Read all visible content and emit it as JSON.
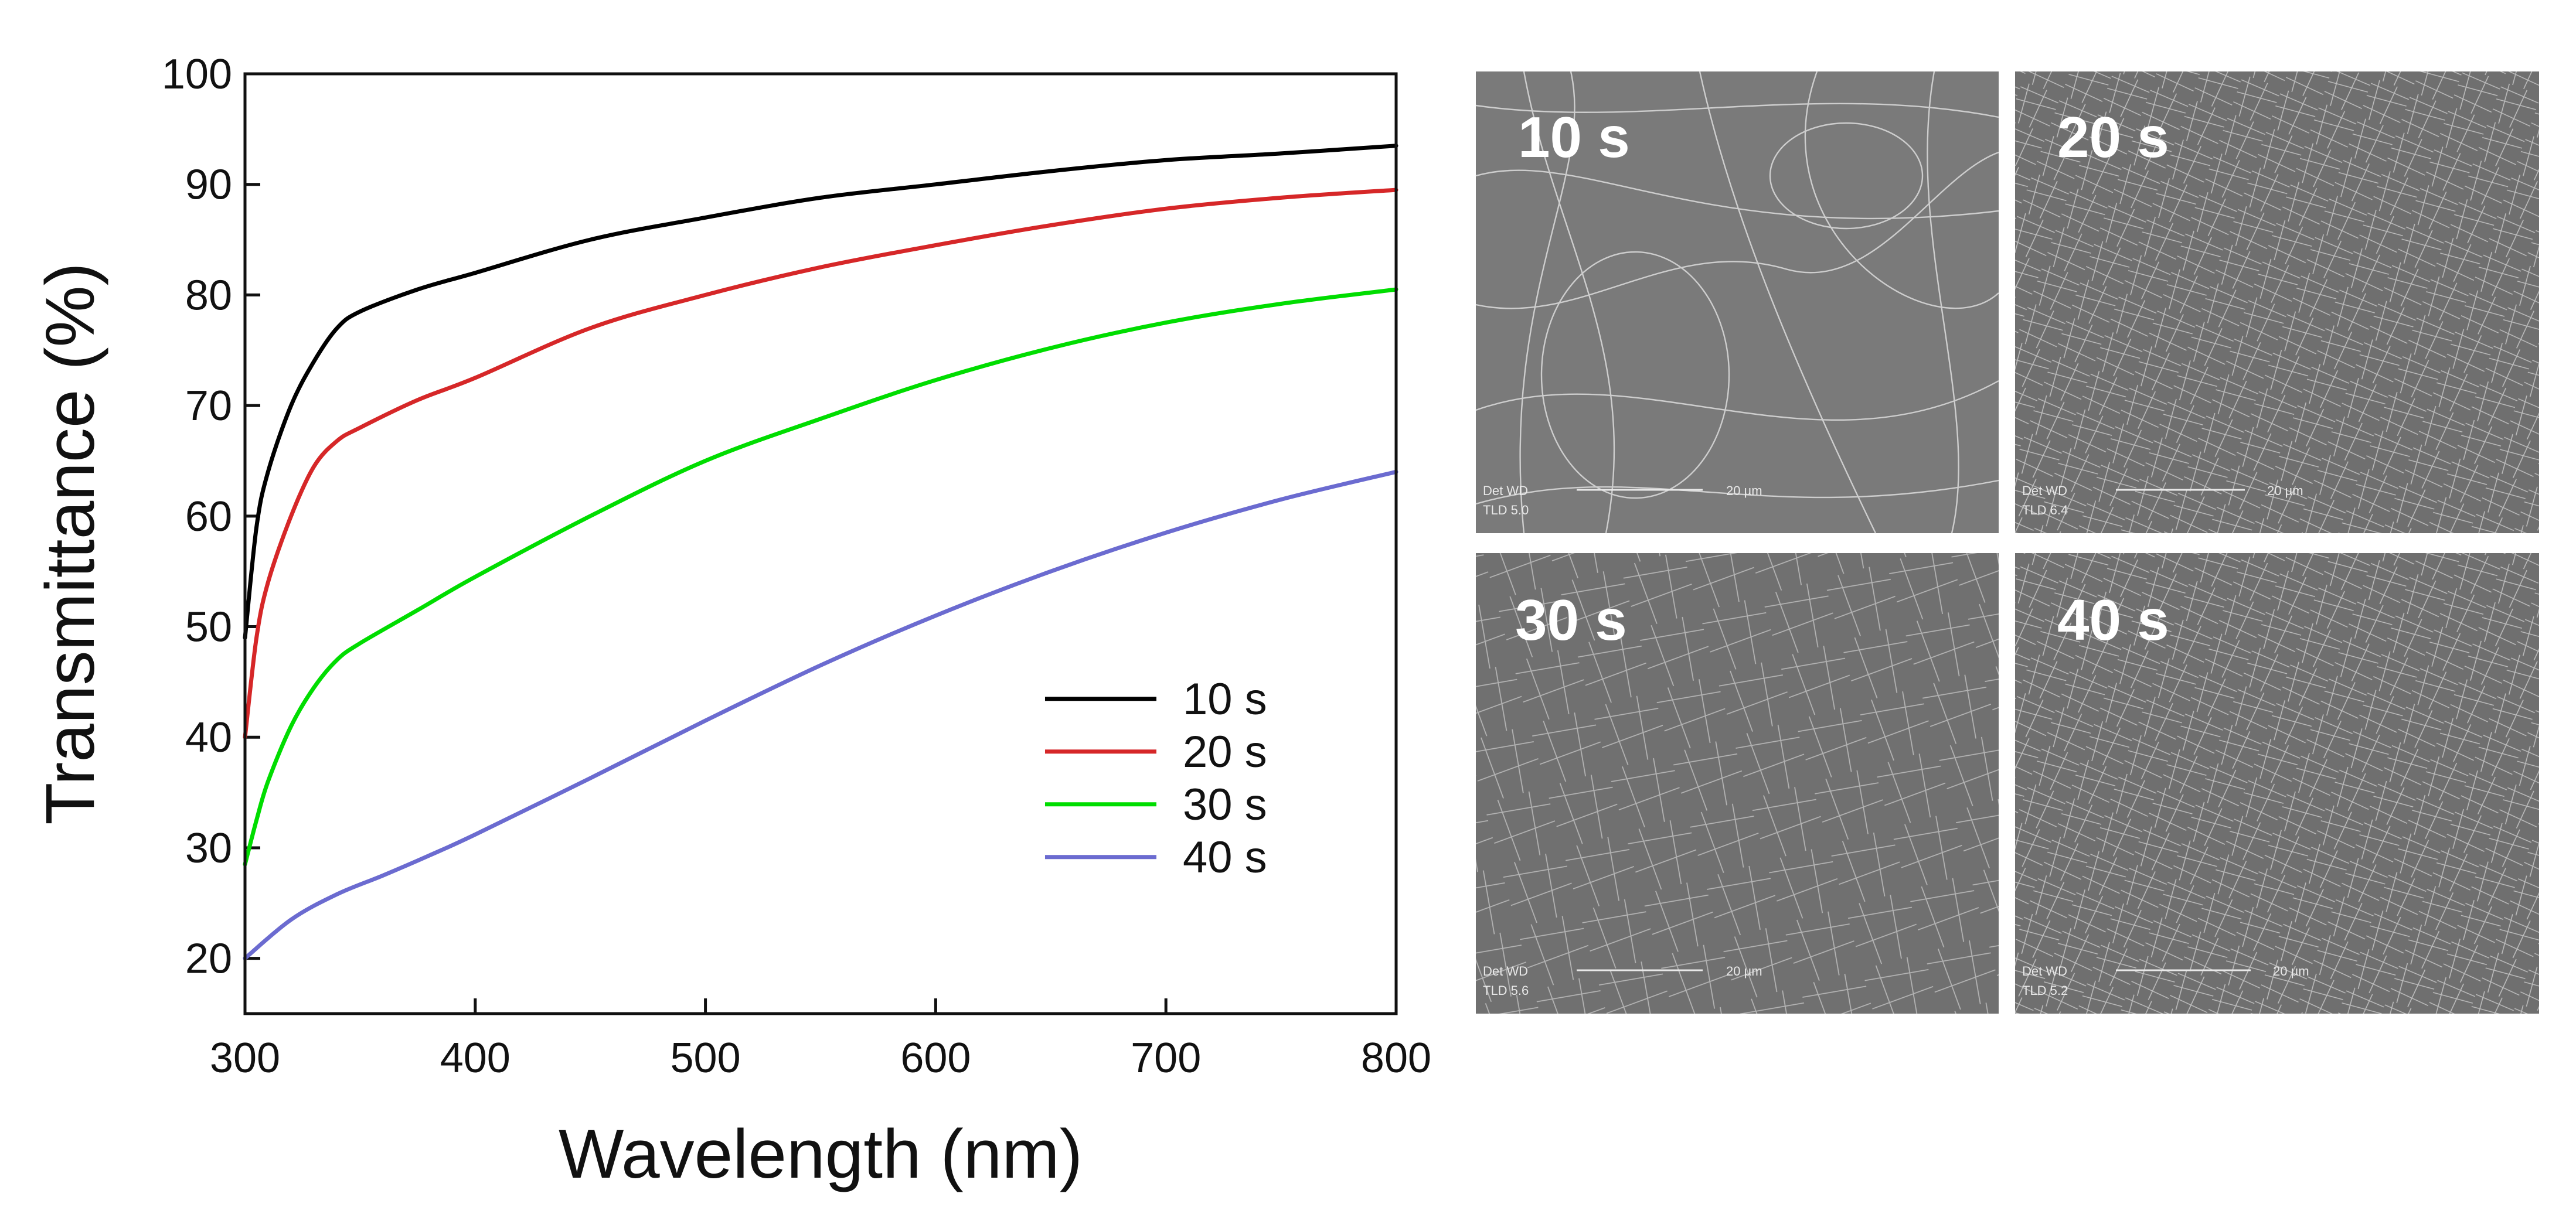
{
  "chart_data": {
    "type": "line",
    "title": "",
    "xlabel": "Wavelength (nm)",
    "ylabel": "Transmittance (%)",
    "xlim": [
      300,
      800
    ],
    "ylim": [
      15,
      100
    ],
    "xticks": [
      300,
      400,
      500,
      600,
      700,
      800
    ],
    "yticks": [
      20,
      30,
      40,
      50,
      60,
      70,
      80,
      90,
      100
    ],
    "grid": false,
    "legend_position": "bottom-right",
    "series": [
      {
        "name": "10 s",
        "color": "#000000",
        "x": [
          300,
          305,
          310,
          320,
          330,
          340,
          350,
          375,
          400,
          450,
          500,
          550,
          600,
          650,
          700,
          750,
          800
        ],
        "y": [
          49,
          59,
          64,
          70,
          74,
          77,
          78.5,
          80.5,
          82,
          85,
          87,
          88.8,
          90,
          91.2,
          92.2,
          92.8,
          93.5
        ]
      },
      {
        "name": "20 s",
        "color": "#d62728",
        "x": [
          300,
          305,
          310,
          320,
          330,
          340,
          350,
          375,
          400,
          450,
          500,
          550,
          600,
          650,
          700,
          750,
          800
        ],
        "y": [
          40,
          49,
          54,
          60,
          64.5,
          66.8,
          68,
          70.5,
          72.5,
          77,
          80,
          82.5,
          84.5,
          86.3,
          87.8,
          88.8,
          89.5
        ]
      },
      {
        "name": "30 s",
        "color": "#00dd00",
        "x": [
          300,
          305,
          310,
          320,
          330,
          340,
          350,
          375,
          400,
          450,
          500,
          550,
          600,
          650,
          700,
          750,
          800
        ],
        "y": [
          28.5,
          32.5,
          36,
          41,
          44.5,
          47,
          48.5,
          51.5,
          54.5,
          60,
          65,
          68.8,
          72.3,
          75.2,
          77.5,
          79.2,
          80.5
        ]
      },
      {
        "name": "40 s",
        "color": "#6b6bd0",
        "x": [
          300,
          320,
          340,
          360,
          380,
          400,
          450,
          500,
          550,
          600,
          650,
          700,
          750,
          800
        ],
        "y": [
          20,
          23.5,
          25.8,
          27.5,
          29.3,
          31.2,
          36.3,
          41.5,
          46.5,
          51,
          55,
          58.5,
          61.5,
          64
        ]
      }
    ]
  },
  "sem_panels": [
    {
      "label": "10 s",
      "info_line1": "Det   WD",
      "info_line2": "TLD   5.0",
      "scale_label": "20 µm"
    },
    {
      "label": "20 s",
      "info_line1": "Det   WD",
      "info_line2": "TLD   6.4",
      "scale_label": "20 µm"
    },
    {
      "label": "30 s",
      "info_line1": "Det   WD",
      "info_line2": "TLD   5.6",
      "scale_label": "20 µm"
    },
    {
      "label": "40 s",
      "info_line1": "Det   WD",
      "info_line2": "TLD   5.2",
      "scale_label": "20 µm"
    }
  ]
}
